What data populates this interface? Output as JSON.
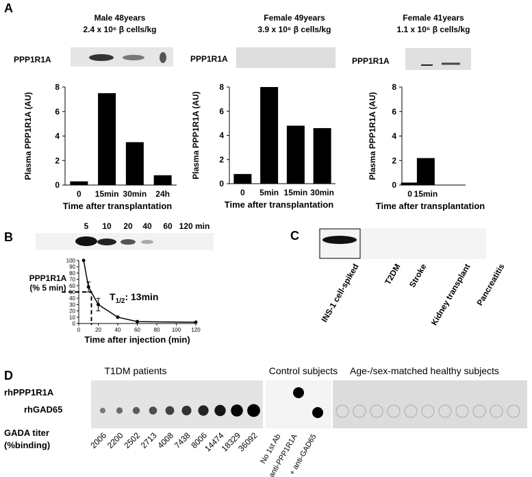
{
  "panel_labels": [
    "A",
    "B",
    "C",
    "D"
  ],
  "blot_labels": {
    "a": [
      "PPP1R1A",
      "PPP1R1A",
      "PPP1R1A"
    ],
    "b": [
      "5",
      "10",
      "20",
      "40",
      "60",
      "120 min"
    ],
    "c": [
      "INS-1 cell-spiked",
      "T2DM",
      "Stroke",
      "Kidney transplant",
      "Pancreatitis"
    ]
  },
  "panel_d": {
    "headers": [
      "T1DM patients",
      "Control subjects",
      "Age-/sex-matched healthy subjects"
    ],
    "row_labels": [
      "rhPPP1R1A",
      "rhGAD65"
    ],
    "titer_label": [
      "GADA titer",
      "(%binding)"
    ],
    "titers": [
      "2006",
      "2200",
      "2502",
      "2713",
      "4008",
      "7438",
      "8006",
      "14474",
      "18329",
      "36092"
    ],
    "controls": [
      "No 1st Ab",
      "+ anti-PPP1R1A",
      "+ anti-GAD65"
    ]
  },
  "chart_data": [
    {
      "type": "bar",
      "title": "Male  48years",
      "subtitle": "2.4 x 10⁶ β cells/kg",
      "ylabel": "Plasma PPP1R1A (AU)",
      "xlabel": "Time after transplantation",
      "categories": [
        "0",
        "15min",
        "30min",
        "24h"
      ],
      "values": [
        0.3,
        7.5,
        3.5,
        0.8
      ],
      "ylim": [
        0,
        8
      ],
      "yticks": [
        0,
        2,
        4,
        6,
        8
      ],
      "color": "#000000"
    },
    {
      "type": "bar",
      "title": "Female  49years",
      "subtitle": "3.9 x 10⁶ β cells/kg",
      "ylabel": "Plasma PPP1R1A (AU)",
      "xlabel": "Time after transplantation",
      "categories": [
        "0",
        "5min",
        "15min",
        "30min"
      ],
      "values": [
        0.8,
        8.0,
        4.8,
        4.6
      ],
      "ylim": [
        0,
        8
      ],
      "yticks": [
        0,
        2,
        4,
        6,
        8
      ],
      "color": "#000000"
    },
    {
      "type": "bar",
      "title": "Female  41years",
      "subtitle": "1.1 x 10⁶ β cells/kg",
      "ylabel": "Plasma PPP1R1A (AU)",
      "xlabel": "Time after transplantation",
      "categories": [
        "0",
        "15min"
      ],
      "values": [
        0.2,
        2.2
      ],
      "ylim": [
        0,
        8
      ],
      "yticks": [
        0,
        2,
        4,
        6,
        8
      ],
      "color": "#000000"
    },
    {
      "type": "line",
      "ylabel": [
        "PPP1R1A",
        "(% 5 min)"
      ],
      "xlabel": "Time after injection (min)",
      "annotation": {
        "text": "T",
        "sub": "1/2",
        "rest": ": 13min"
      },
      "half_life_point": [
        13,
        50
      ],
      "x": [
        5,
        10,
        20,
        40,
        60,
        120
      ],
      "values": [
        100,
        58,
        30,
        10,
        3,
        2
      ],
      "errors": [
        null,
        8,
        10,
        null,
        null,
        null
      ],
      "xlim": [
        0,
        120
      ],
      "xticks": [
        0,
        20,
        40,
        60,
        80,
        100,
        120
      ],
      "ylim": [
        0,
        100
      ],
      "yticks": [
        0,
        10,
        20,
        30,
        40,
        50,
        60,
        70,
        80,
        90,
        100
      ],
      "color": "#000000"
    }
  ]
}
